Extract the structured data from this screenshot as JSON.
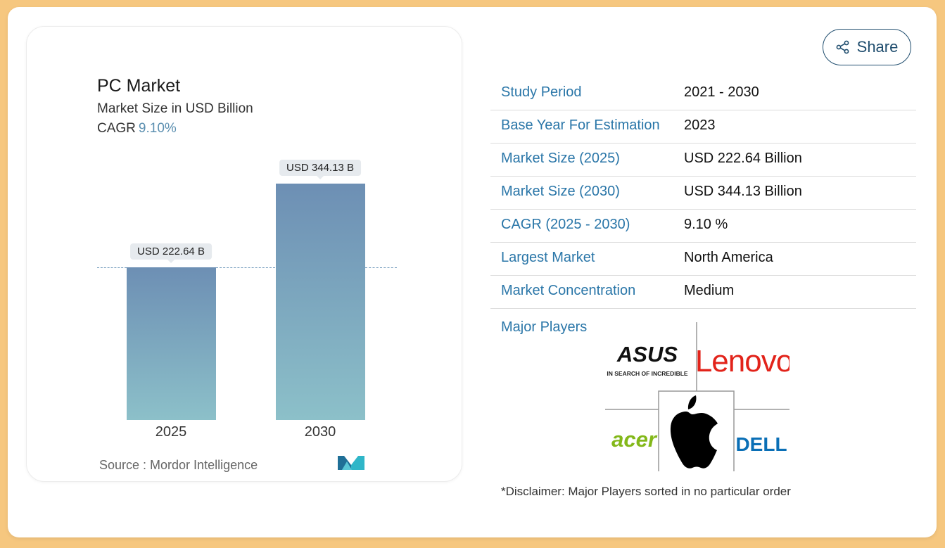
{
  "chart": {
    "title": "PC Market",
    "subtitle": "Market Size in USD Billion",
    "cagr_label": "CAGR",
    "cagr_value": "9.10%",
    "source": "Source :  Mordor Intelligence"
  },
  "chart_data": {
    "type": "bar",
    "title": "PC Market",
    "ylabel": "Market Size in USD Billion",
    "categories": [
      "2025",
      "2030"
    ],
    "values": [
      222.64,
      344.13
    ],
    "data_labels": [
      "USD 222.64 B",
      "USD 344.13 B"
    ],
    "ylim": [
      0,
      344.13
    ]
  },
  "share": {
    "label": "Share"
  },
  "info": [
    {
      "key": "Study Period",
      "value": "2021 - 2030"
    },
    {
      "key": "Base Year For Estimation",
      "value": "2023"
    },
    {
      "key": "Market Size (2025)",
      "value": "USD 222.64 Billion"
    },
    {
      "key": "Market Size (2030)",
      "value": "USD 344.13 Billion"
    },
    {
      "key": "CAGR (2025 - 2030)",
      "value": "9.10 %"
    },
    {
      "key": "Largest Market",
      "value": "North America"
    },
    {
      "key": "Market Concentration",
      "value": "Medium"
    }
  ],
  "major_players": {
    "label": "Major Players",
    "logos": {
      "asus": "ASUS",
      "asus_tagline": "IN SEARCH OF INCREDIBLE",
      "lenovo": "Lenovo",
      "acer": "acer",
      "dell": "DELL",
      "apple": "apple-icon"
    }
  },
  "disclaimer": "*Disclaimer: Major Players sorted in no particular order",
  "colors": {
    "background": "#f6c77f",
    "key_text": "#2a76a8",
    "bar_top": "#6d8fb4",
    "bar_bottom": "#8cc0c9",
    "lenovo_red": "#e2231a",
    "acer_green": "#83b81a",
    "dell_blue": "#0a6fb6"
  }
}
